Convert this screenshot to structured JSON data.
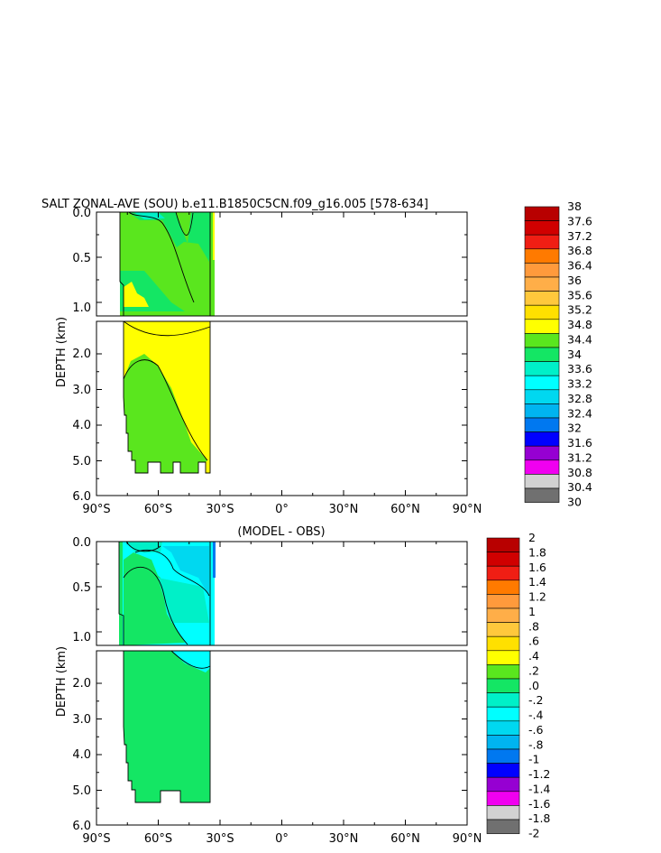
{
  "chart_data": [
    {
      "type": "heatmap",
      "title": "SALT ZONAL-AVE (SOU) b.e11.B1850C5CN.f09_g16.005 [578-634]",
      "ylabel": "DEPTH (km)",
      "xlim": [
        -90,
        90
      ],
      "ylim": [
        6.0,
        0.0
      ],
      "x_ticks": [
        "90°S",
        "60°S",
        "30°S",
        "0°",
        "30°N",
        "60°N",
        "90°N"
      ],
      "y_ticks_upper": [
        "0.0",
        "0.5",
        "1.0"
      ],
      "y_ticks_lower": [
        "2.0",
        "3.0",
        "4.0",
        "5.0",
        "6.0"
      ],
      "data_region": {
        "lat_start": -79,
        "lat_end": -34,
        "depth_start": 0.0,
        "depth_end": 5.4
      },
      "colorbar": {
        "labels": [
          "38",
          "37.6",
          "37.2",
          "36.8",
          "36.4",
          "36",
          "35.6",
          "35.2",
          "34.8",
          "34.4",
          "34",
          "33.6",
          "33.2",
          "32.8",
          "32.4",
          "32",
          "31.6",
          "31.2",
          "30.8",
          "30.4",
          "30"
        ],
        "colors": [
          "#b80000",
          "#d00000",
          "#f01e14",
          "#ff7a00",
          "#ff9a3c",
          "#ffae48",
          "#ffc83c",
          "#ffe000",
          "#ffff00",
          "#5ae61e",
          "#14e664",
          "#00f0c8",
          "#00ffff",
          "#00d8f0",
          "#00b4f0",
          "#0078f0",
          "#0000ff",
          "#9600d2",
          "#f000f0",
          "#d2d2d2",
          "#707070"
        ]
      }
    },
    {
      "type": "heatmap",
      "title": "(MODEL - OBS)",
      "ylabel": "DEPTH (km)",
      "xlim": [
        -90,
        90
      ],
      "ylim": [
        6.0,
        0.0
      ],
      "x_ticks": [
        "90°S",
        "60°S",
        "30°S",
        "0°",
        "30°N",
        "60°N",
        "90°N"
      ],
      "y_ticks_upper": [
        "0.0",
        "0.5",
        "1.0"
      ],
      "y_ticks_lower": [
        "2.0",
        "3.0",
        "4.0",
        "5.0",
        "6.0"
      ],
      "data_region": {
        "lat_start": -79,
        "lat_end": -34,
        "depth_start": 0.0,
        "depth_end": 5.4
      },
      "colorbar": {
        "labels": [
          "2",
          "1.8",
          "1.6",
          "1.4",
          "1.2",
          "1",
          ".8",
          ".6",
          ".4",
          ".2",
          ".0",
          "-.2",
          "-.4",
          "-.6",
          "-.8",
          "-1",
          "-1.2",
          "-1.4",
          "-1.6",
          "-1.8",
          "-2"
        ],
        "colors": [
          "#b80000",
          "#d00000",
          "#f01e14",
          "#ff7a00",
          "#ff9a3c",
          "#ffae48",
          "#ffc83c",
          "#ffe000",
          "#ffff00",
          "#5ae61e",
          "#14e664",
          "#00f0c8",
          "#00ffff",
          "#00d8f0",
          "#00b4f0",
          "#0078f0",
          "#0000ff",
          "#9600d2",
          "#f000f0",
          "#d2d2d2",
          "#707070"
        ]
      }
    }
  ]
}
